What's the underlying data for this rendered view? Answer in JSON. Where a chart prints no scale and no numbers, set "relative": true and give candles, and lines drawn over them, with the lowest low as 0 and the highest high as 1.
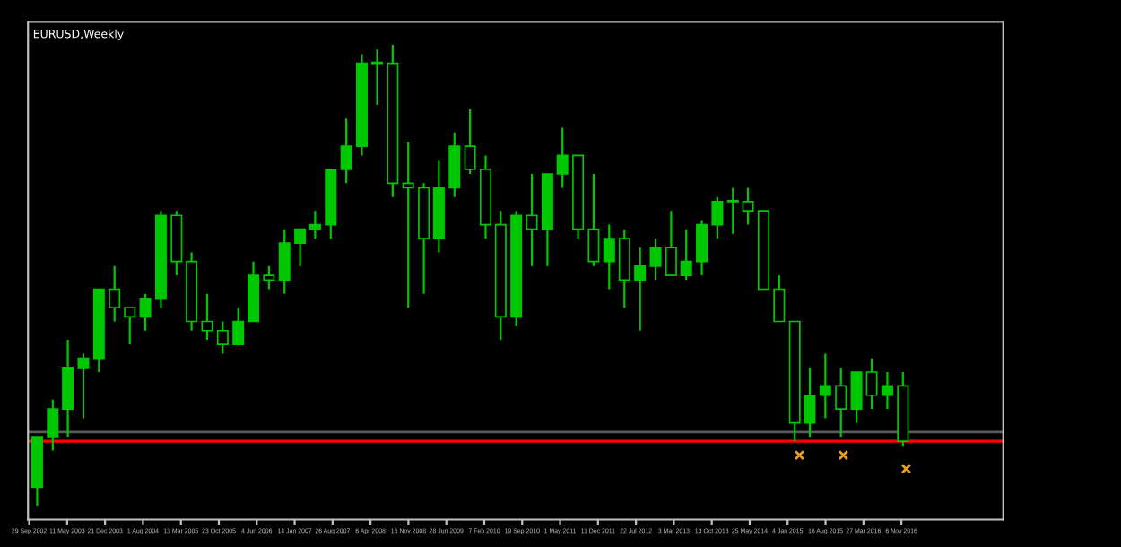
{
  "chart_data": {
    "type": "candlestick",
    "title": "EURUSD,Weekly",
    "relative": true,
    "color": "#00c800",
    "grid": false,
    "legend": false,
    "x": [
      "2002-11-15",
      "2003-02-15",
      "2003-05-15",
      "2003-08-15",
      "2003-11-15",
      "2004-02-15",
      "2004-05-15",
      "2004-08-15",
      "2004-11-15",
      "2005-02-15",
      "2005-05-15",
      "2005-08-15",
      "2005-11-15",
      "2006-02-15",
      "2006-05-15",
      "2006-08-15",
      "2006-11-15",
      "2007-02-15",
      "2007-05-15",
      "2007-08-15",
      "2007-11-15",
      "2008-02-15",
      "2008-05-15",
      "2008-08-15",
      "2008-11-15",
      "2009-02-15",
      "2009-05-15",
      "2009-08-15",
      "2009-11-15",
      "2010-02-15",
      "2010-05-15",
      "2010-08-15",
      "2010-11-15",
      "2011-02-15",
      "2011-05-15",
      "2011-08-15",
      "2011-11-15",
      "2012-02-15",
      "2012-05-15",
      "2012-08-15",
      "2012-11-15",
      "2013-02-15",
      "2013-05-15",
      "2013-08-15",
      "2013-11-15",
      "2014-02-15",
      "2014-05-15",
      "2014-08-15",
      "2014-11-15",
      "2015-02-15",
      "2015-05-15",
      "2015-08-15",
      "2015-11-15",
      "2016-02-15",
      "2016-05-15",
      "2016-08-15",
      "2016-11-15"
    ],
    "ohlc": [
      [
        0.04,
        0.15,
        0,
        0.15
      ],
      [
        0.15,
        0.23,
        0.12,
        0.21
      ],
      [
        0.21,
        0.36,
        0.15,
        0.3
      ],
      [
        0.3,
        0.33,
        0.19,
        0.32
      ],
      [
        0.32,
        0.47,
        0.29,
        0.47
      ],
      [
        0.47,
        0.52,
        0.4,
        0.43
      ],
      [
        0.43,
        0.43,
        0.35,
        0.41
      ],
      [
        0.41,
        0.46,
        0.38,
        0.45
      ],
      [
        0.45,
        0.64,
        0.43,
        0.63
      ],
      [
        0.63,
        0.64,
        0.5,
        0.53
      ],
      [
        0.53,
        0.55,
        0.38,
        0.4
      ],
      [
        0.4,
        0.46,
        0.36,
        0.38
      ],
      [
        0.38,
        0.4,
        0.33,
        0.35
      ],
      [
        0.35,
        0.43,
        0.35,
        0.4
      ],
      [
        0.4,
        0.53,
        0.4,
        0.5
      ],
      [
        0.5,
        0.52,
        0.47,
        0.49
      ],
      [
        0.49,
        0.6,
        0.46,
        0.57
      ],
      [
        0.57,
        0.6,
        0.52,
        0.6
      ],
      [
        0.6,
        0.64,
        0.58,
        0.61
      ],
      [
        0.61,
        0.73,
        0.58,
        0.73
      ],
      [
        0.73,
        0.84,
        0.7,
        0.78
      ],
      [
        0.78,
        0.98,
        0.76,
        0.96
      ],
      [
        0.96,
        0.99,
        0.87,
        0.96
      ],
      [
        0.96,
        1.0,
        0.67,
        0.7
      ],
      [
        0.7,
        0.79,
        0.43,
        0.69
      ],
      [
        0.69,
        0.7,
        0.46,
        0.58
      ],
      [
        0.58,
        0.75,
        0.55,
        0.69
      ],
      [
        0.69,
        0.81,
        0.67,
        0.78
      ],
      [
        0.78,
        0.86,
        0.72,
        0.73
      ],
      [
        0.73,
        0.76,
        0.58,
        0.61
      ],
      [
        0.61,
        0.64,
        0.36,
        0.41
      ],
      [
        0.41,
        0.64,
        0.39,
        0.63
      ],
      [
        0.63,
        0.72,
        0.52,
        0.6
      ],
      [
        0.6,
        0.72,
        0.52,
        0.72
      ],
      [
        0.72,
        0.82,
        0.69,
        0.76
      ],
      [
        0.76,
        0.76,
        0.58,
        0.6
      ],
      [
        0.6,
        0.72,
        0.52,
        0.53
      ],
      [
        0.53,
        0.61,
        0.47,
        0.58
      ],
      [
        0.58,
        0.6,
        0.43,
        0.49
      ],
      [
        0.49,
        0.56,
        0.38,
        0.52
      ],
      [
        0.52,
        0.58,
        0.49,
        0.56
      ],
      [
        0.56,
        0.64,
        0.5,
        0.5
      ],
      [
        0.5,
        0.6,
        0.49,
        0.53
      ],
      [
        0.53,
        0.62,
        0.5,
        0.61
      ],
      [
        0.61,
        0.67,
        0.58,
        0.66
      ],
      [
        0.66,
        0.69,
        0.59,
        0.66
      ],
      [
        0.66,
        0.69,
        0.61,
        0.64
      ],
      [
        0.64,
        0.64,
        0.47,
        0.47
      ],
      [
        0.47,
        0.5,
        0.4,
        0.4
      ],
      [
        0.4,
        0.4,
        0.14,
        0.18
      ],
      [
        0.18,
        0.3,
        0.15,
        0.24
      ],
      [
        0.24,
        0.33,
        0.19,
        0.26
      ],
      [
        0.26,
        0.3,
        0.15,
        0.21
      ],
      [
        0.21,
        0.29,
        0.18,
        0.29
      ],
      [
        0.29,
        0.32,
        0.21,
        0.24
      ],
      [
        0.24,
        0.29,
        0.21,
        0.26
      ],
      [
        0.26,
        0.29,
        0.13,
        0.14
      ]
    ],
    "series": [
      {
        "type": "scatter",
        "color": "#e8a020",
        "marker": "cross",
        "x": [
          "2015-03-15",
          "2015-11-29",
          "2016-12-04"
        ],
        "values": [
          0.11,
          0.11,
          0.08
        ]
      }
    ],
    "ref_lines": [
      {
        "axis": "y",
        "value": 0.14,
        "color": "#ff0000",
        "line_style": "solid"
      },
      {
        "axis": "y",
        "value": 0.16,
        "color": "#5a5a5a",
        "line_style": "solid"
      }
    ],
    "xlim": [
      "2002-09-22",
      "2018-07-01"
    ],
    "xticks": [
      {
        "value": "2002-09-29",
        "label": "29 Sep 2002"
      },
      {
        "value": "2003-05-11",
        "label": "11 May 2003"
      },
      {
        "value": "2003-12-21",
        "label": "21 Dec 2003"
      },
      {
        "value": "2004-08-01",
        "label": "1 Aug 2004"
      },
      {
        "value": "2005-03-13",
        "label": "13 Mar 2005"
      },
      {
        "value": "2005-10-23",
        "label": "23 Oct 2005"
      },
      {
        "value": "2006-06-04",
        "label": "4 Jun 2006"
      },
      {
        "value": "2007-01-14",
        "label": "14 Jan 2007"
      },
      {
        "value": "2007-08-26",
        "label": "26 Aug 2007"
      },
      {
        "value": "2008-04-06",
        "label": "6 Apr 2008"
      },
      {
        "value": "2008-11-16",
        "label": "16 Nov 2008"
      },
      {
        "value": "2009-06-28",
        "label": "28 Jun 2009"
      },
      {
        "value": "2010-02-07",
        "label": "7 Feb 2010"
      },
      {
        "value": "2010-09-19",
        "label": "19 Sep 2010"
      },
      {
        "value": "2011-05-01",
        "label": "1 May 2011"
      },
      {
        "value": "2011-12-11",
        "label": "11 Dec 2011"
      },
      {
        "value": "2012-07-22",
        "label": "22 Jul 2012"
      },
      {
        "value": "2013-03-03",
        "label": "3 Mar 2013"
      },
      {
        "value": "2013-10-13",
        "label": "13 Oct 2013"
      },
      {
        "value": "2014-05-25",
        "label": "25 May 2014"
      },
      {
        "value": "2015-01-04",
        "label": "4 Jan 2015"
      },
      {
        "value": "2015-08-16",
        "label": "16 Aug 2015"
      },
      {
        "value": "2016-03-27",
        "label": "27 Mar 2016"
      },
      {
        "value": "2016-11-06",
        "label": "6 Nov 2016"
      }
    ]
  }
}
